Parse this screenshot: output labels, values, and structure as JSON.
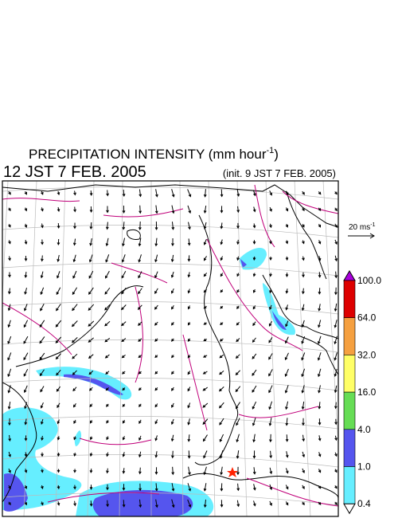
{
  "header": {
    "title_main": "PRECIPITATION INTENSITY (mm hour",
    "title_sup": "-1",
    "title_end": ")",
    "valid_time": "12 JST 7 FEB. 2005",
    "init_time": "(init. 9 JST 7 FEB. 2005)"
  },
  "wind_scale": {
    "label": "20 ms",
    "sup": "-1"
  },
  "colorbar": {
    "labels": [
      "100.0",
      "64.0",
      "32.0",
      "16.0",
      "4.0",
      "1.0",
      "0.4"
    ],
    "colors": [
      "#dd0000",
      "#f5a040",
      "#ffff66",
      "#66dd55",
      "#5555ee",
      "#66eeff"
    ],
    "over_color": "#aa00dd",
    "under_color": "#ffffff"
  }
}
